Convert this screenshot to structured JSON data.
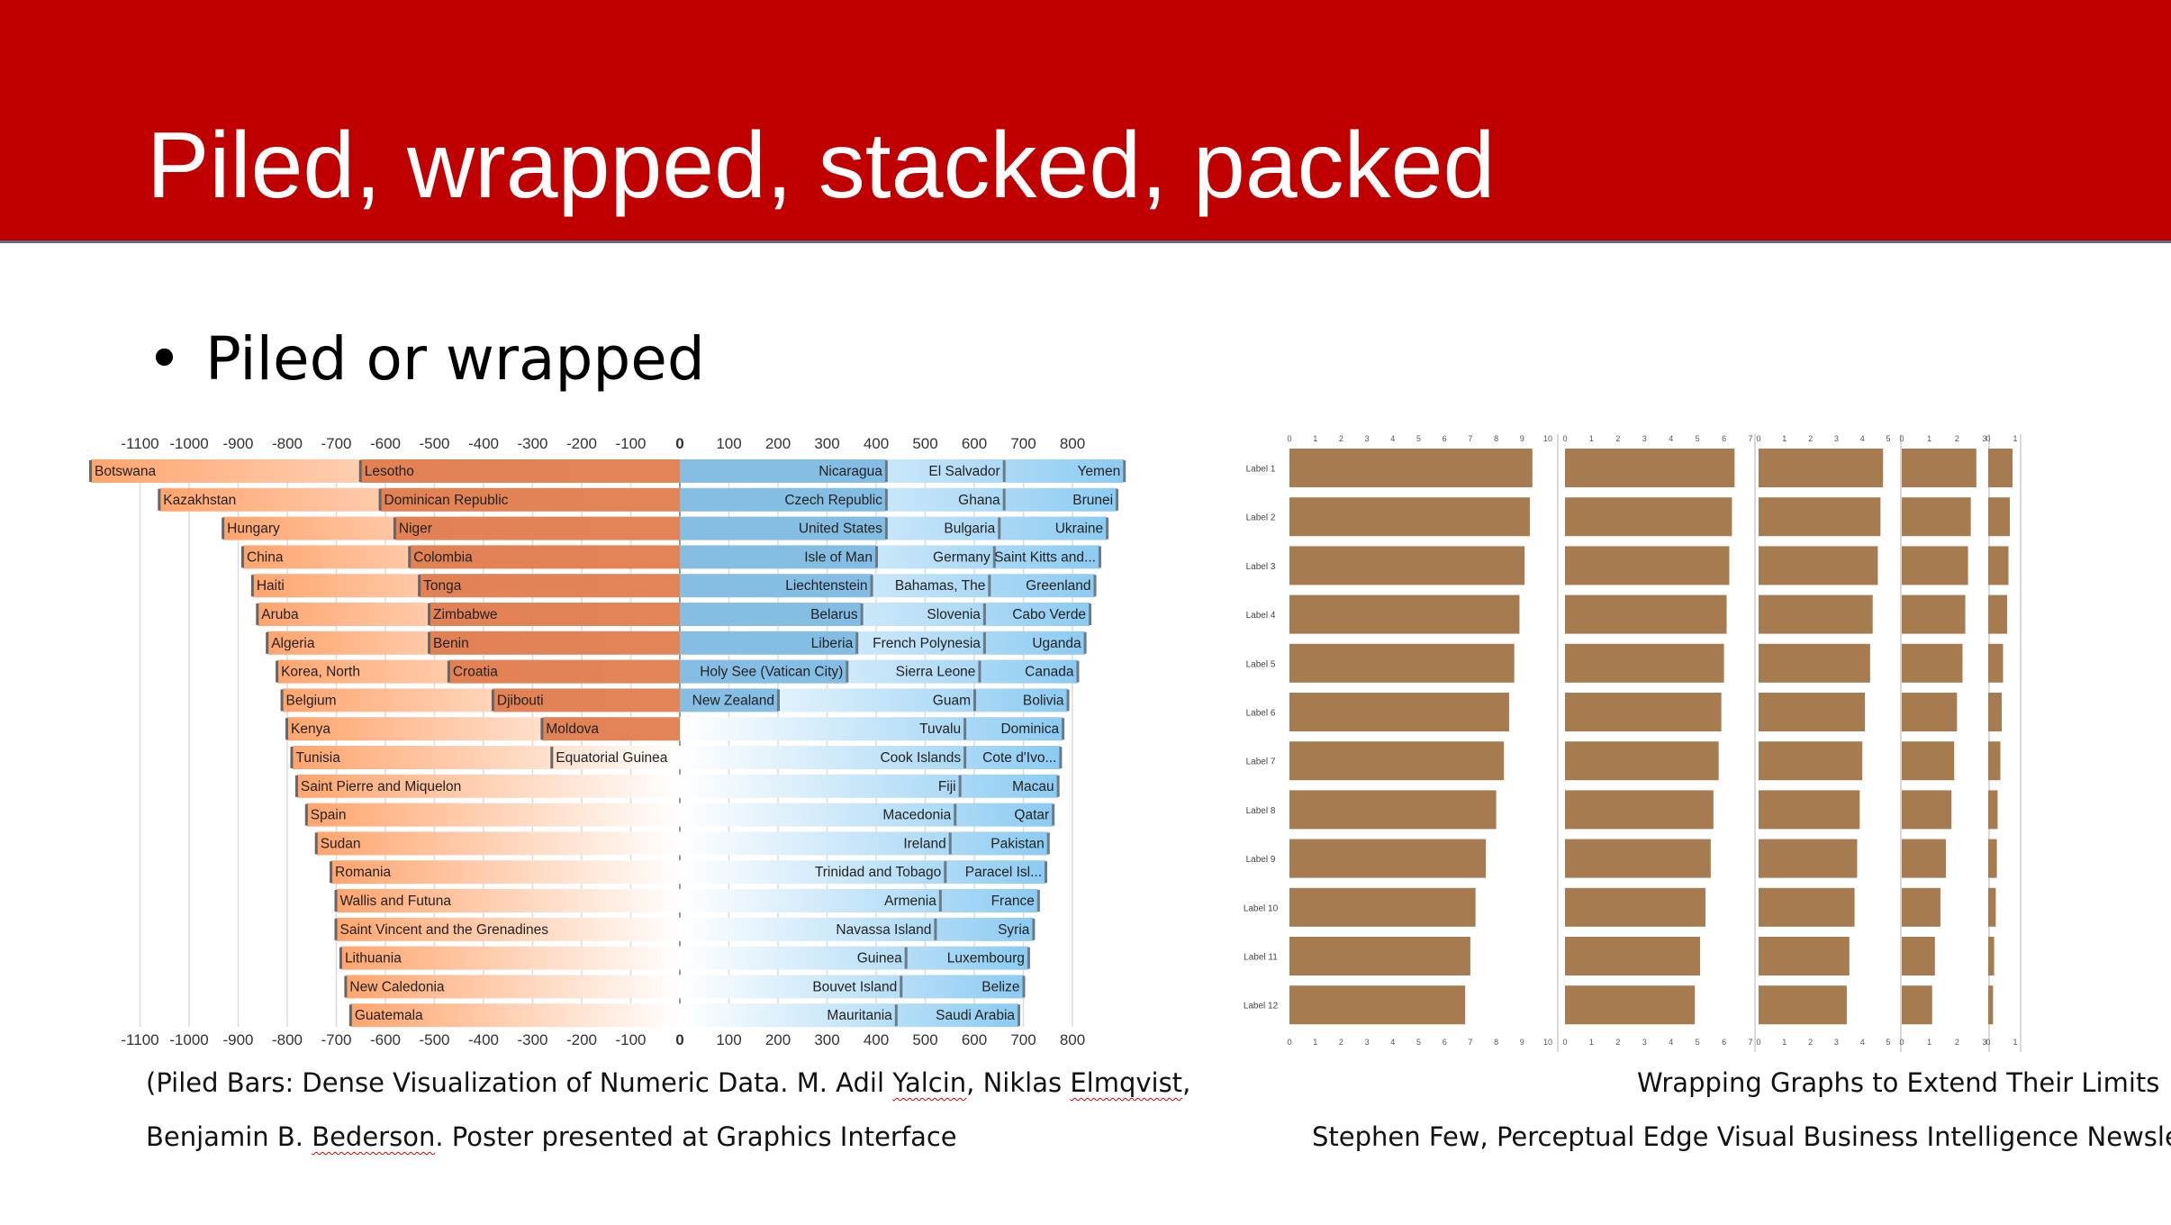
{
  "slide": {
    "title": "Piled, wrapped, stacked, packed",
    "bullet": "Piled or wrapped"
  },
  "captions": {
    "left_line1_a": "(Piled Bars: Dense Visualization of Numeric Data. M. Adil ",
    "left_line1_b": "Yalcin",
    "left_line1_c": ", Niklas ",
    "left_line1_d": "Elmqvist",
    "left_line1_e": ",",
    "left_line2_a": "Benjamin B. ",
    "left_line2_b": "Bederson",
    "left_line2_c": ". Poster presented at Graphics Interface",
    "right_line1": "Wrapping Graphs to Extend Their Limits",
    "right_line2": "Stephen Few, Perceptual Edge Visual Business Intelligence Newsletter"
  },
  "colors": {
    "banner": "#c00000",
    "negative_bar": "#e07d4f",
    "positive_bar": "#7fbbe2",
    "wrapped_bar": "#a67b4f"
  },
  "chart_data": [
    {
      "type": "bar",
      "xlim": [
        -1100,
        800
      ],
      "ticks": [
        "-1100",
        "-1000",
        "-900",
        "-800",
        "-700",
        "-600",
        "-500",
        "-400",
        "-300",
        "-200",
        "-100",
        "0",
        "100",
        "200",
        "300",
        "400",
        "500",
        "600",
        "700",
        "800"
      ],
      "rows": [
        {
          "neg": [
            {
              "label": "Botswana",
              "value": -1200
            },
            {
              "label": "Lesotho",
              "value": -650
            }
          ],
          "pos": [
            {
              "label": "Nicaragua",
              "value": 420
            },
            {
              "label": "El Salvador",
              "value": 660
            },
            {
              "label": "Yemen",
              "value": 905
            }
          ]
        },
        {
          "neg": [
            {
              "label": "Kazakhstan",
              "value": -1060
            },
            {
              "label": "Dominican Republic",
              "value": -610
            }
          ],
          "pos": [
            {
              "label": "Czech Republic",
              "value": 420
            },
            {
              "label": "Ghana",
              "value": 660
            },
            {
              "label": "Brunei",
              "value": 890
            }
          ]
        },
        {
          "neg": [
            {
              "label": "Hungary",
              "value": -930
            },
            {
              "label": "Niger",
              "value": -580
            }
          ],
          "pos": [
            {
              "label": "United States",
              "value": 420
            },
            {
              "label": "Bulgaria",
              "value": 650
            },
            {
              "label": "Ukraine",
              "value": 870
            }
          ]
        },
        {
          "neg": [
            {
              "label": "China",
              "value": -890
            },
            {
              "label": "Colombia",
              "value": -550
            }
          ],
          "pos": [
            {
              "label": "Isle of Man",
              "value": 400
            },
            {
              "label": "Germany",
              "value": 640
            },
            {
              "label": "Saint Kitts and...",
              "value": 855
            }
          ]
        },
        {
          "neg": [
            {
              "label": "Haiti",
              "value": -870
            },
            {
              "label": "Tonga",
              "value": -530
            }
          ],
          "pos": [
            {
              "label": "Liechtenstein",
              "value": 390
            },
            {
              "label": "Bahamas, The",
              "value": 630
            },
            {
              "label": "Greenland",
              "value": 845
            }
          ]
        },
        {
          "neg": [
            {
              "label": "Aruba",
              "value": -860
            },
            {
              "label": "Zimbabwe",
              "value": -510
            }
          ],
          "pos": [
            {
              "label": "Belarus",
              "value": 370
            },
            {
              "label": "Slovenia",
              "value": 620
            },
            {
              "label": "Cabo Verde",
              "value": 835
            }
          ]
        },
        {
          "neg": [
            {
              "label": "Algeria",
              "value": -840
            },
            {
              "label": "Benin",
              "value": -510
            }
          ],
          "pos": [
            {
              "label": "Liberia",
              "value": 360
            },
            {
              "label": "French Polynesia",
              "value": 620
            },
            {
              "label": "Uganda",
              "value": 825
            }
          ]
        },
        {
          "neg": [
            {
              "label": "Korea, North",
              "value": -820
            },
            {
              "label": "Croatia",
              "value": -470
            }
          ],
          "pos": [
            {
              "label": "Holy See (Vatican City)",
              "value": 340
            },
            {
              "label": "Sierra Leone",
              "value": 610
            },
            {
              "label": "Canada",
              "value": 810
            }
          ]
        },
        {
          "neg": [
            {
              "label": "Belgium",
              "value": -810
            },
            {
              "label": "Djibouti",
              "value": -380
            }
          ],
          "pos": [
            {
              "label": "New Zealand",
              "value": 200
            },
            {
              "label": "Guam",
              "value": 600
            },
            {
              "label": "Bolivia",
              "value": 790
            }
          ]
        },
        {
          "neg": [
            {
              "label": "Kenya",
              "value": -800
            },
            {
              "label": "Moldova",
              "value": -280
            }
          ],
          "pos": [
            {
              "label": "Tuvalu",
              "value": 580
            },
            {
              "label": "Dominica",
              "value": 780
            }
          ]
        },
        {
          "neg": [
            {
              "label": "Tunisia",
              "value": -790
            },
            {
              "label": "Equatorial Guinea",
              "value": -260
            }
          ],
          "pos": [
            {
              "label": "Cook Islands",
              "value": 580
            },
            {
              "label": "Cote d'Ivo...",
              "value": 775
            }
          ]
        },
        {
          "neg": [
            {
              "label": "Saint Pierre and Miquelon",
              "value": -780
            }
          ],
          "pos": [
            {
              "label": "Fiji",
              "value": 570
            },
            {
              "label": "Macau",
              "value": 770
            }
          ]
        },
        {
          "neg": [
            {
              "label": "Spain",
              "value": -760
            }
          ],
          "pos": [
            {
              "label": "Macedonia",
              "value": 560
            },
            {
              "label": "Qatar",
              "value": 760
            }
          ]
        },
        {
          "neg": [
            {
              "label": "Sudan",
              "value": -740
            }
          ],
          "pos": [
            {
              "label": "Ireland",
              "value": 550
            },
            {
              "label": "Pakistan",
              "value": 750
            }
          ]
        },
        {
          "neg": [
            {
              "label": "Romania",
              "value": -710
            }
          ],
          "pos": [
            {
              "label": "Trinidad and Tobago",
              "value": 540
            },
            {
              "label": "Paracel Isl...",
              "value": 745
            }
          ]
        },
        {
          "neg": [
            {
              "label": "Wallis and Futuna",
              "value": -700
            }
          ],
          "pos": [
            {
              "label": "Armenia",
              "value": 530
            },
            {
              "label": "France",
              "value": 730
            }
          ]
        },
        {
          "neg": [
            {
              "label": "Saint Vincent and the Grenadines",
              "value": -700
            }
          ],
          "pos": [
            {
              "label": "Navassa Island",
              "value": 520
            },
            {
              "label": "Syria",
              "value": 720
            }
          ]
        },
        {
          "neg": [
            {
              "label": "Lithuania",
              "value": -690
            }
          ],
          "pos": [
            {
              "label": "Guinea",
              "value": 460
            },
            {
              "label": "Luxembourg",
              "value": 710
            }
          ]
        },
        {
          "neg": [
            {
              "label": "New Caledonia",
              "value": -680
            }
          ],
          "pos": [
            {
              "label": "Bouvet Island",
              "value": 450
            },
            {
              "label": "Belize",
              "value": 700
            }
          ]
        },
        {
          "neg": [
            {
              "label": "Guatemala",
              "value": -670
            }
          ],
          "pos": [
            {
              "label": "Mauritania",
              "value": 440
            },
            {
              "label": "Saudi Arabia",
              "value": 690
            }
          ]
        }
      ]
    },
    {
      "type": "bar",
      "categories": [
        "Label 1",
        "Label 2",
        "Label 3",
        "Label 4",
        "Label 5",
        "Label 6",
        "Label 7",
        "Label 8",
        "Label 9",
        "Label 10",
        "Label 11",
        "Label 12"
      ],
      "panels": [
        {
          "ticks": [
            "0",
            "1",
            "2",
            "3",
            "4",
            "5",
            "6",
            "7",
            "8",
            "9",
            "10"
          ],
          "max": 10,
          "values": [
            9.4,
            9.3,
            9.1,
            8.9,
            8.7,
            8.5,
            8.3,
            8.0,
            7.6,
            7.2,
            7.0,
            6.8
          ]
        },
        {
          "ticks": [
            "0",
            "1",
            "2",
            "3",
            "4",
            "5",
            "6",
            "7"
          ],
          "max": 7,
          "values": [
            6.4,
            6.3,
            6.2,
            6.1,
            6.0,
            5.9,
            5.8,
            5.6,
            5.5,
            5.3,
            5.1,
            4.9
          ]
        },
        {
          "ticks": [
            "0",
            "1",
            "2",
            "3",
            "4",
            "5"
          ],
          "max": 5,
          "values": [
            4.8,
            4.7,
            4.6,
            4.4,
            4.3,
            4.1,
            4.0,
            3.9,
            3.8,
            3.7,
            3.5,
            3.4
          ]
        },
        {
          "ticks": [
            "0",
            "1",
            "2",
            "3"
          ],
          "max": 3,
          "values": [
            2.7,
            2.5,
            2.4,
            2.3,
            2.2,
            2.0,
            1.9,
            1.8,
            1.6,
            1.4,
            1.2,
            1.1
          ]
        },
        {
          "ticks": [
            "0",
            "1"
          ],
          "max": 1,
          "values": [
            0.9,
            0.8,
            0.75,
            0.7,
            0.55,
            0.5,
            0.45,
            0.35,
            0.32,
            0.28,
            0.22,
            0.18
          ]
        }
      ]
    }
  ]
}
